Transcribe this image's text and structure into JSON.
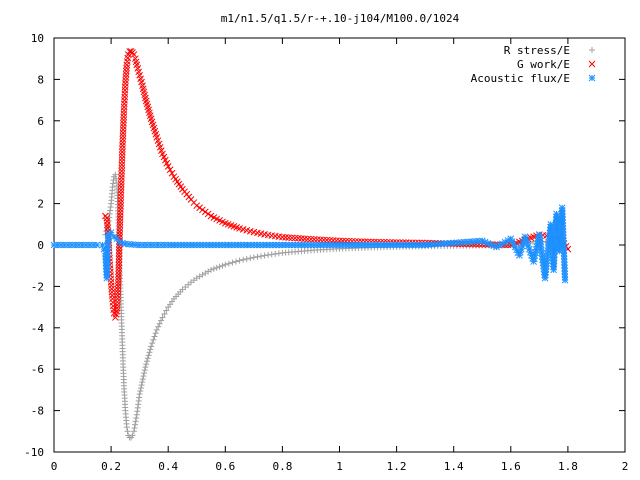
{
  "chart_data": {
    "type": "scatter",
    "title": "m1/n1.5/q1.5/r-+.10-j104/M100.0/1024",
    "xlabel": "",
    "ylabel": "",
    "xlim": [
      0,
      2
    ],
    "ylim": [
      -10,
      10
    ],
    "x_ticks": [
      "0",
      "0.2",
      "0.4",
      "0.6",
      "0.8",
      "1",
      "1.2",
      "1.4",
      "1.6",
      "1.8",
      "2"
    ],
    "y_ticks": [
      "10",
      "8",
      "6",
      "4",
      "2",
      "0",
      "-2",
      "-4",
      "-6",
      "-8",
      "-10"
    ],
    "legend_position": "top-right",
    "series": [
      {
        "name": "R stress/E",
        "marker": "+",
        "color": "#a0a0a0",
        "x": [
          0.18,
          0.19,
          0.2,
          0.205,
          0.21,
          0.215,
          0.22,
          0.225,
          0.23,
          0.235,
          0.24,
          0.245,
          0.25,
          0.255,
          0.26,
          0.265,
          0.27,
          0.275,
          0.28,
          0.29,
          0.3,
          0.32,
          0.34,
          0.36,
          0.38,
          0.4,
          0.42,
          0.45,
          0.48,
          0.5,
          0.55,
          0.6,
          0.65,
          0.7,
          0.75,
          0.8,
          0.9,
          1.0,
          1.1,
          1.2,
          1.3,
          1.4,
          1.5,
          1.6,
          1.7,
          1.78
        ],
        "y": [
          0.5,
          1.0,
          2.0,
          2.8,
          3.3,
          3.4,
          3.0,
          1.5,
          -1.0,
          -3.0,
          -5.0,
          -6.8,
          -8.0,
          -8.8,
          -9.2,
          -9.3,
          -9.3,
          -9.2,
          -9.0,
          -8.2,
          -7.2,
          -5.9,
          -4.9,
          -4.1,
          -3.5,
          -3.0,
          -2.6,
          -2.15,
          -1.8,
          -1.6,
          -1.2,
          -0.95,
          -0.75,
          -0.6,
          -0.48,
          -0.38,
          -0.26,
          -0.18,
          -0.13,
          -0.09,
          -0.06,
          -0.04,
          -0.02,
          0.0,
          0.2,
          0.0
        ]
      },
      {
        "name": "G work/E",
        "marker": "x",
        "color": "#ff0000",
        "x": [
          0.18,
          0.185,
          0.19,
          0.195,
          0.2,
          0.205,
          0.21,
          0.215,
          0.22,
          0.225,
          0.23,
          0.235,
          0.24,
          0.245,
          0.25,
          0.255,
          0.26,
          0.265,
          0.27,
          0.275,
          0.28,
          0.285,
          0.29,
          0.3,
          0.31,
          0.32,
          0.34,
          0.36,
          0.38,
          0.4,
          0.42,
          0.45,
          0.48,
          0.5,
          0.55,
          0.6,
          0.65,
          0.7,
          0.75,
          0.8,
          0.9,
          1.0,
          1.1,
          1.2,
          1.3,
          1.4,
          1.5,
          1.6,
          1.7,
          1.75,
          1.78,
          1.8
        ],
        "y": [
          1.4,
          1.3,
          0.5,
          -0.8,
          -1.8,
          -2.6,
          -3.3,
          -3.5,
          -3.2,
          -2.0,
          0.5,
          2.8,
          4.8,
          6.5,
          7.8,
          8.7,
          9.2,
          9.35,
          9.35,
          9.3,
          9.2,
          9.0,
          8.7,
          8.2,
          7.7,
          7.1,
          6.1,
          5.2,
          4.4,
          3.8,
          3.3,
          2.7,
          2.2,
          1.9,
          1.4,
          1.05,
          0.8,
          0.62,
          0.48,
          0.38,
          0.28,
          0.2,
          0.15,
          0.12,
          0.1,
          0.06,
          0.03,
          0.0,
          0.5,
          0.4,
          0.2,
          -0.2
        ]
      },
      {
        "name": "Acoustic flux/E",
        "marker": "*",
        "color": "#1e90ff",
        "x": [
          0.0,
          0.05,
          0.1,
          0.15,
          0.17,
          0.18,
          0.185,
          0.19,
          0.2,
          0.21,
          0.22,
          0.23,
          0.25,
          0.3,
          0.35,
          0.4,
          0.5,
          0.6,
          0.7,
          0.8,
          0.9,
          1.0,
          1.1,
          1.2,
          1.3,
          1.4,
          1.45,
          1.5,
          1.55,
          1.6,
          1.63,
          1.65,
          1.68,
          1.7,
          1.72,
          1.74,
          1.75,
          1.76,
          1.77,
          1.78,
          1.79
        ],
        "y": [
          0.0,
          0.0,
          0.0,
          0.0,
          0.0,
          -0.4,
          -1.6,
          0.5,
          0.6,
          0.4,
          0.3,
          0.15,
          0.05,
          0.0,
          0.0,
          0.0,
          0.0,
          0.0,
          0.0,
          0.0,
          0.0,
          0.0,
          0.0,
          0.0,
          0.0,
          0.1,
          0.15,
          0.2,
          -0.1,
          0.3,
          -0.5,
          0.4,
          -0.8,
          0.5,
          -1.6,
          1.0,
          -1.2,
          1.5,
          -0.3,
          1.8,
          -1.7
        ]
      }
    ]
  }
}
